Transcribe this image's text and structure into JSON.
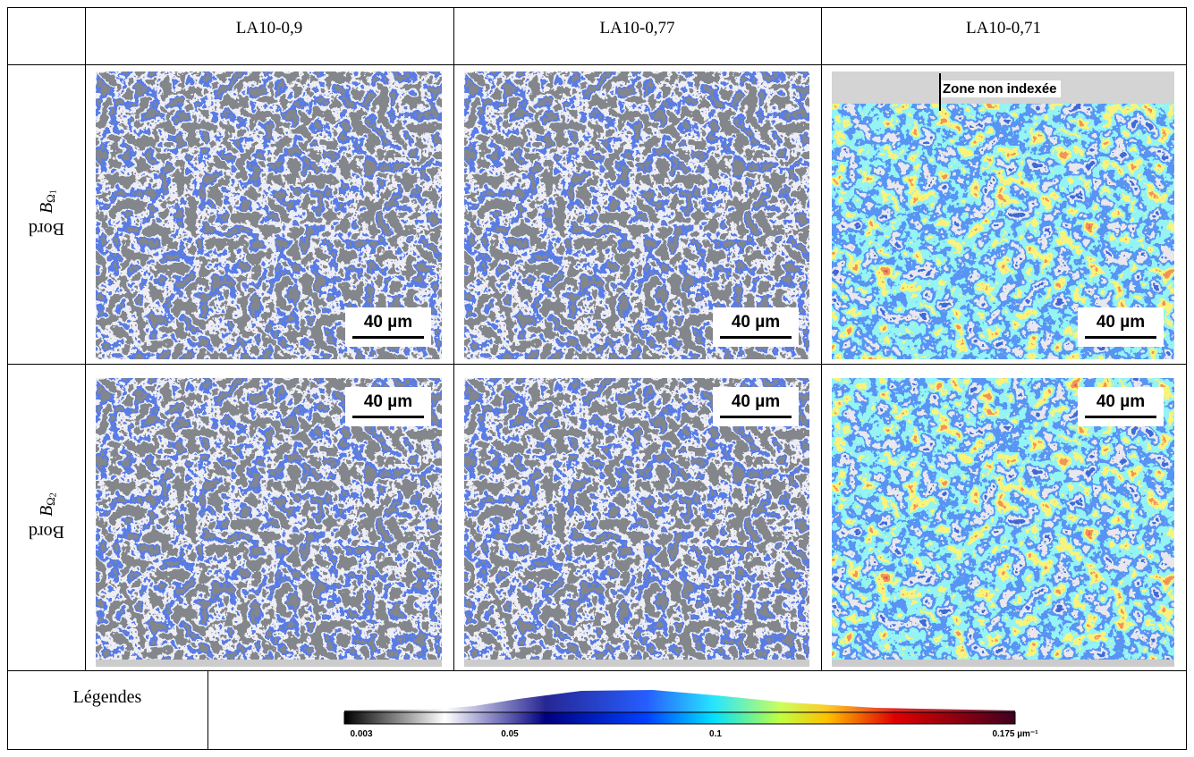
{
  "table": {
    "columns": [
      "LA10-0,9",
      "LA10-0,77",
      "LA10-0,71"
    ],
    "rows": [
      {
        "label": "Bord",
        "symbol": "B",
        "subscript": "Ω",
        "index": "1",
        "scale_bars": [
          "40 µm",
          "40 µm",
          "40 µm"
        ]
      },
      {
        "label": "Bord",
        "symbol": "B",
        "subscript": "Ω",
        "index": "2",
        "scale_bars": [
          "40 µm",
          "40 µm",
          "40 µm"
        ]
      }
    ],
    "annotation": "Zone non indexée",
    "legend": {
      "label": "Légendes",
      "ticks": [
        "0.003",
        "0.05",
        "0.1",
        "0.175 µm⁻¹"
      ]
    }
  }
}
